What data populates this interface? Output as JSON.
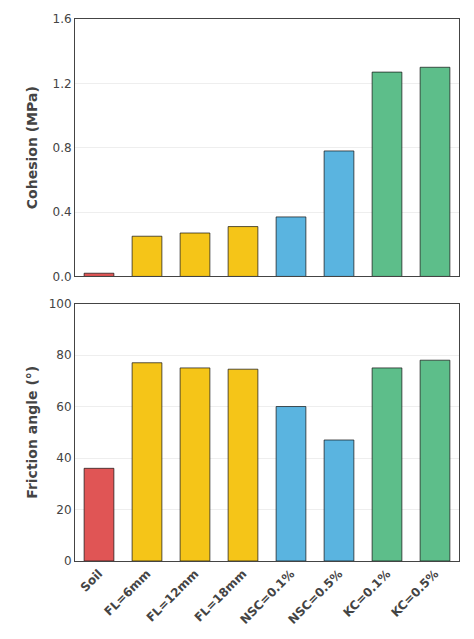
{
  "chart_data": [
    {
      "type": "bar",
      "categories": [
        "Soil",
        "FL=6mm",
        "FL=12mm",
        "FL=18mm",
        "NSC=0.1%",
        "NSC=0.5%",
        "KC=0.1%",
        "KC=0.5%"
      ],
      "values": [
        0.02,
        0.25,
        0.27,
        0.31,
        0.37,
        0.78,
        1.27,
        1.3
      ],
      "colors": [
        "#e05555",
        "#f5c518",
        "#f5c518",
        "#f5c518",
        "#5ab4e0",
        "#5ab4e0",
        "#5dbe8a",
        "#5dbe8a"
      ],
      "ylabel": "Cohesion (MPa)",
      "ylim": [
        0,
        1.6
      ],
      "yticks": [
        {
          "value": 0,
          "label": "0.0"
        },
        0.4,
        0.8,
        1.2,
        1.6
      ],
      "grid": true,
      "tick_labels": "y"
    },
    {
      "type": "bar",
      "categories": [
        "Soil",
        "FL=6mm",
        "FL=12mm",
        "FL=18mm",
        "NSC=0.1%",
        "NSC=0.5%",
        "KC=0.1%",
        "KC=0.5%"
      ],
      "values": [
        36,
        77,
        75,
        74.5,
        60,
        47,
        75,
        78
      ],
      "colors": [
        "#e05555",
        "#f5c518",
        "#f5c518",
        "#f5c518",
        "#5ab4e0",
        "#5ab4e0",
        "#5dbe8a",
        "#5dbe8a"
      ],
      "ylabel": "Friction angle (°)",
      "ylim": [
        0,
        100
      ],
      "yticks": [
        0,
        20,
        40,
        60,
        80,
        100
      ],
      "grid": true
    }
  ]
}
